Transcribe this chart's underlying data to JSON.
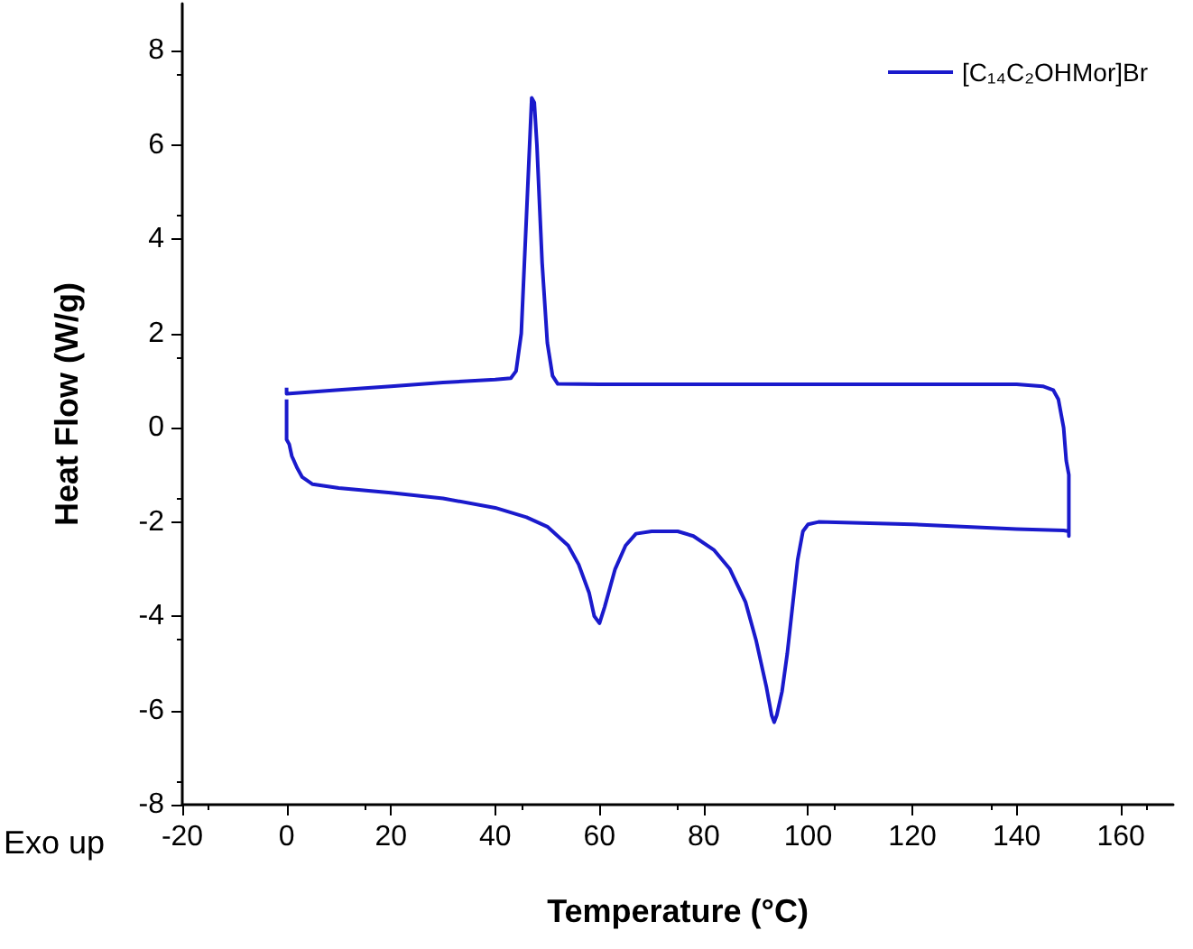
{
  "chart_data": {
    "type": "line",
    "xlabel": "Temperature (°C)",
    "ylabel": "Heat Flow (W/g)",
    "annotations": [
      "Exo up"
    ],
    "xlim": [
      -20,
      170
    ],
    "xticks": [
      -20,
      0,
      20,
      40,
      60,
      80,
      100,
      120,
      140,
      160
    ],
    "ylim": [
      -8,
      9
    ],
    "yticks": [
      -8,
      -6,
      -4,
      -2,
      0,
      2,
      4,
      6,
      8
    ],
    "legend": "top right",
    "marker": "none",
    "line_style": "solid",
    "series": [
      {
        "name": "[C₁₄C₂OHMor]Br",
        "color": "#1a1acc",
        "x": [
          0,
          0,
          10,
          20,
          30,
          40,
          43,
          44,
          45,
          46,
          47,
          47.5,
          48,
          49,
          50,
          51,
          52,
          60,
          100,
          140,
          145,
          147,
          148,
          149,
          149.5,
          150,
          150,
          150,
          149,
          140,
          120,
          102,
          100,
          99,
          98,
          97,
          96,
          95,
          94,
          93.5,
          93,
          92,
          90,
          88,
          85,
          82,
          78,
          75,
          70,
          67,
          65,
          63,
          61,
          60,
          59,
          58,
          56,
          54,
          50,
          46,
          40,
          30,
          20,
          10,
          5,
          3,
          2,
          1,
          0.5,
          0,
          0
        ],
        "values": [
          0.85,
          0.72,
          0.8,
          0.88,
          0.96,
          1.02,
          1.05,
          1.2,
          2,
          4.5,
          7.0,
          6.9,
          6.0,
          3.5,
          1.8,
          1.1,
          0.93,
          0.92,
          0.92,
          0.92,
          0.88,
          0.8,
          0.6,
          0,
          -0.7,
          -1.0,
          -2.3,
          -2.2,
          -2.18,
          -2.15,
          -2.05,
          -2.0,
          -2.05,
          -2.2,
          -2.8,
          -3.8,
          -4.8,
          -5.6,
          -6.1,
          -6.25,
          -6.1,
          -5.5,
          -4.5,
          -3.7,
          -3.0,
          -2.6,
          -2.3,
          -2.2,
          -2.2,
          -2.25,
          -2.5,
          -3.0,
          -3.8,
          -4.15,
          -4.0,
          -3.5,
          -2.9,
          -2.5,
          -2.1,
          -1.9,
          -1.7,
          -1.5,
          -1.38,
          -1.28,
          -1.2,
          -1.05,
          -0.85,
          -0.6,
          -0.35,
          -0.25,
          0.6
        ]
      }
    ]
  }
}
